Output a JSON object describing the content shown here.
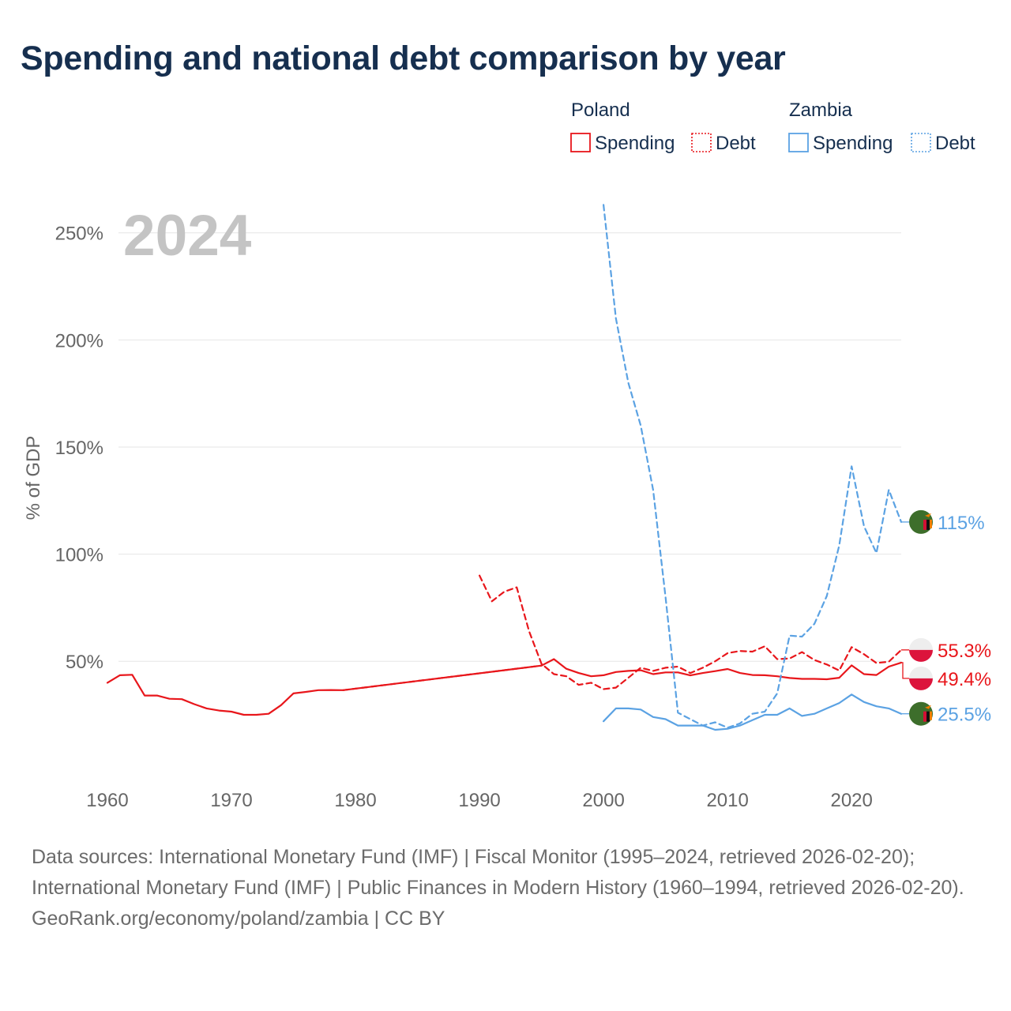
{
  "title": "Spending and national debt comparison by year",
  "year_label": "2024",
  "chart_data": {
    "type": "line",
    "ylabel": "% of GDP",
    "xlim": [
      1960,
      2024
    ],
    "ylim": [
      -3,
      265
    ],
    "x_ticks": [
      1960,
      1970,
      1980,
      1990,
      2000,
      2010,
      2020
    ],
    "x_tick_labels": [
      "1960",
      "1970",
      "1980",
      "1990",
      "2000",
      "2010",
      "2020"
    ],
    "y_ticks": [
      50,
      100,
      150,
      200,
      250
    ],
    "y_tick_labels": [
      "50%",
      "100%",
      "150%",
      "200%",
      "250%"
    ],
    "series": [
      {
        "country": "Poland",
        "name": "Spending",
        "color": "#e8161b",
        "dash": "solid",
        "end_label": "49.4%",
        "flag": "poland",
        "x": [
          1960,
          1961,
          1962,
          1963,
          1964,
          1965,
          1966,
          1967,
          1968,
          1969,
          1970,
          1971,
          1972,
          1973,
          1974,
          1975,
          1976,
          1977,
          1978,
          1979,
          1995,
          1996,
          1997,
          1998,
          1999,
          2000,
          2001,
          2002,
          2003,
          2004,
          2005,
          2006,
          2007,
          2008,
          2009,
          2010,
          2011,
          2012,
          2013,
          2014,
          2015,
          2016,
          2017,
          2018,
          2019,
          2020,
          2021,
          2022,
          2023,
          2024
        ],
        "values": [
          40,
          43.5,
          43.7,
          34,
          34,
          32.5,
          32.3,
          30,
          28,
          27,
          26.5,
          25,
          25,
          25.5,
          29.5,
          35,
          35.7,
          36.5,
          36.6,
          36.5,
          48,
          51,
          46.5,
          44.5,
          43,
          43.5,
          45,
          45.5,
          45.8,
          44,
          44.8,
          44.8,
          43.4,
          44.5,
          45.4,
          46.4,
          44.5,
          43.6,
          43.5,
          43,
          42.2,
          41.8,
          41.8,
          41.6,
          42.3,
          48.1,
          44,
          43.6,
          47.5,
          49.4
        ]
      },
      {
        "country": "Poland",
        "name": "Spending (estimated gap)",
        "color": "#e8161b",
        "dash": "dashed",
        "x": [
          1979,
          1995
        ],
        "values": [
          36.5,
          48
        ]
      },
      {
        "country": "Poland",
        "name": "Debt",
        "color": "#e8161b",
        "dash": "dashed",
        "end_label": "55.3%",
        "flag": "poland",
        "x": [
          1990,
          1991,
          1992,
          1993,
          1994,
          1995,
          1996,
          1997,
          1998,
          1999,
          2000,
          2001,
          2002,
          2003,
          2004,
          2005,
          2006,
          2007,
          2008,
          2009,
          2010,
          2011,
          2012,
          2013,
          2014,
          2015,
          2016,
          2017,
          2018,
          2019,
          2020,
          2021,
          2022,
          2023,
          2024
        ],
        "values": [
          90,
          78,
          82.5,
          84.5,
          64,
          48.8,
          44,
          43,
          39,
          40,
          37,
          37.7,
          42.3,
          47,
          45.5,
          47,
          47.5,
          44.5,
          47,
          50,
          53.8,
          54.8,
          54.5,
          57,
          51,
          51.3,
          54.3,
          50.6,
          48.5,
          45.7,
          56.6,
          53.3,
          49.2,
          49.8,
          55.3
        ]
      },
      {
        "country": "Zambia",
        "name": "Spending",
        "color": "#5ba2e3",
        "dash": "solid",
        "end_label": "25.5%",
        "flag": "zambia",
        "x": [
          2000,
          2001,
          2002,
          2003,
          2004,
          2005,
          2006,
          2007,
          2008,
          2009,
          2010,
          2011,
          2012,
          2013,
          2014,
          2015,
          2016,
          2017,
          2018,
          2019,
          2020,
          2021,
          2022,
          2023,
          2024
        ],
        "values": [
          22,
          28,
          28,
          27.5,
          24,
          23,
          20,
          20,
          20,
          18,
          18.5,
          20,
          22.5,
          25,
          25,
          28,
          24.5,
          25.5,
          28,
          30.5,
          34.5,
          31,
          29,
          28,
          25.5
        ]
      },
      {
        "country": "Zambia",
        "name": "Debt",
        "color": "#5ba2e3",
        "dash": "dashed",
        "end_label": "115%",
        "flag": "zambia",
        "x": [
          2000,
          2001,
          2002,
          2003,
          2004,
          2005,
          2006,
          2007,
          2008,
          2009,
          2010,
          2011,
          2012,
          2013,
          2014,
          2015,
          2016,
          2017,
          2018,
          2019,
          2020,
          2021,
          2022,
          2023,
          2024
        ],
        "values": [
          263,
          210,
          180,
          160,
          130,
          80,
          26,
          23,
          20,
          21.5,
          19,
          21,
          25.5,
          26.5,
          35,
          62,
          61.5,
          67.5,
          80.5,
          104,
          141,
          113,
          100.5,
          130,
          115
        ]
      }
    ],
    "legend": {
      "groups": [
        {
          "name": "Poland",
          "items": [
            "Spending",
            "Debt"
          ],
          "color": "#e8161b"
        },
        {
          "name": "Zambia",
          "items": [
            "Spending",
            "Debt"
          ],
          "color": "#5ba2e3"
        }
      ],
      "position": "top-right"
    }
  },
  "footer": {
    "sources": "Data sources: International Monetary Fund (IMF) | Fiscal Monitor (1995–2024, retrieved 2026-02-20); International Monetary Fund (IMF) | Public Finances in Modern History (1960–1994, retrieved 2026-02-20).",
    "credit": "GeoRank.org/economy/poland/zambia | CC BY"
  },
  "colors": {
    "title": "#162f4f",
    "axis_text": "#666666",
    "grid": "#e6e6e6",
    "year_watermark": "#c4c4c4",
    "poland": "#e8161b",
    "zambia": "#5ba2e3",
    "zambia_flag_green": "#3d6e2b"
  }
}
